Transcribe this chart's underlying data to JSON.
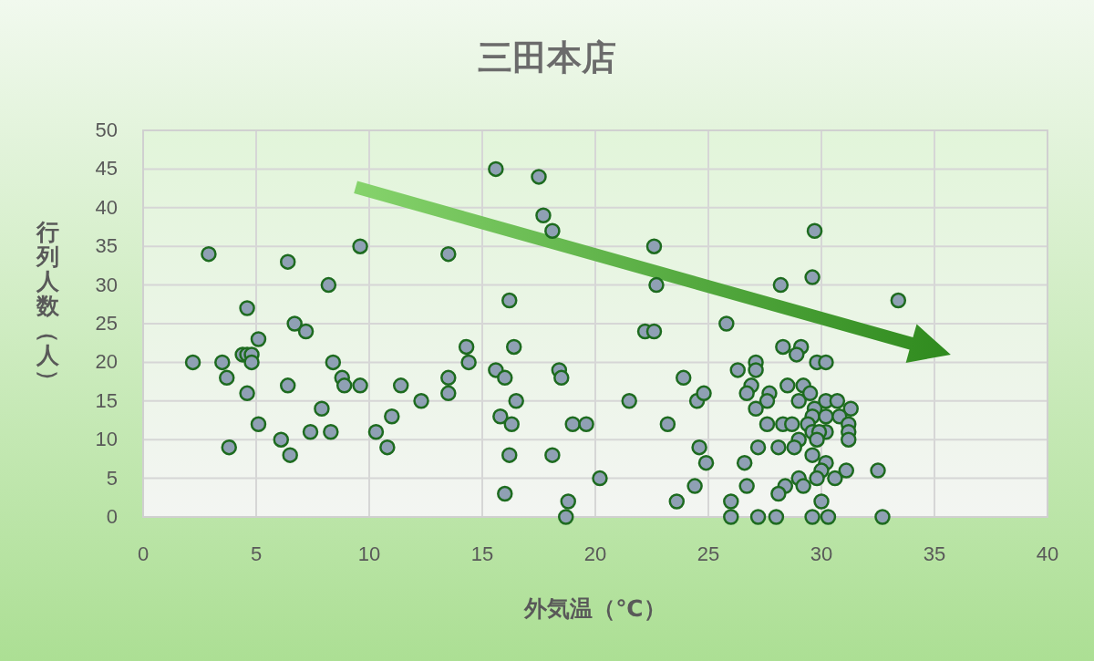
{
  "chart_data": {
    "type": "scatter",
    "title": "三田本店",
    "xlabel": "外気温（℃）",
    "ylabel": "行列人数（人）",
    "xlim": [
      0,
      40
    ],
    "xticks": [
      0,
      5,
      10,
      15,
      20,
      25,
      30,
      35,
      40
    ],
    "ylim": [
      0,
      50
    ],
    "yticks": [
      0,
      5,
      10,
      15,
      20,
      25,
      30,
      35,
      40,
      45,
      50
    ],
    "grid": true,
    "marker": "circle",
    "series": [
      {
        "color": "#8fa0b4",
        "x": [
          2.2,
          2.9,
          3.5,
          3.7,
          3.8,
          4.6,
          4.4,
          4.6,
          4.8,
          4.8,
          4.6,
          5.1,
          5.1,
          6.1,
          6.4,
          6.4,
          6.5,
          6.7,
          7.2,
          7.4,
          7.9,
          8.2,
          8.3,
          8.4,
          8.8,
          8.9,
          9.6,
          9.6,
          10.3,
          10.8,
          11.0,
          11.4,
          12.3,
          13.5,
          13.5,
          13.5,
          14.3,
          14.4,
          15.6,
          17.5,
          17.7,
          18.1,
          22.6,
          22.7,
          16.2,
          22.2,
          22.6,
          16.4,
          15.6,
          16.0,
          18.4,
          18.5,
          23.9,
          16.5,
          21.5,
          24.5,
          24.8,
          15.8,
          16.3,
          19.0,
          19.6,
          23.2,
          16.2,
          18.1,
          24.6,
          24.9,
          20.2,
          24.4,
          16.0,
          18.8,
          18.7,
          23.6,
          28.2,
          29.6,
          29.7,
          33.4,
          25.8,
          28.3,
          29.1,
          28.9,
          27.1,
          27.1,
          26.3,
          29.8,
          30.2,
          26.9,
          26.7,
          27.7,
          27.6,
          28.5,
          29.2,
          29.5,
          27.1,
          29.0,
          29.7,
          30.2,
          30.7,
          31.3,
          29.6,
          30.2,
          30.8,
          27.6,
          28.3,
          28.7,
          29.4,
          31.2,
          30.2,
          29.6,
          29.9,
          31.2,
          31.2,
          29.8,
          29.0,
          27.2,
          28.1,
          28.8,
          29.6,
          26.6,
          30.2,
          31.1,
          30.0,
          32.5,
          30.6,
          29.8,
          29.0,
          26.7,
          28.4,
          29.2,
          28.1,
          26.0,
          30.0,
          26.0,
          27.2,
          28.0,
          29.6,
          30.3,
          32.7
        ],
        "values": [
          20,
          34,
          20,
          18,
          9,
          27,
          21,
          21,
          21,
          20,
          16,
          23,
          12,
          10,
          33,
          17,
          8,
          25,
          24,
          11,
          14,
          30,
          11,
          20,
          18,
          17,
          35,
          17,
          11,
          9,
          13,
          17,
          15,
          34,
          18,
          16,
          22,
          20,
          45,
          44,
          39,
          37,
          35,
          30,
          28,
          24,
          24,
          22,
          19,
          18,
          19,
          18,
          18,
          15,
          15,
          15,
          16,
          13,
          12,
          12,
          12,
          12,
          8,
          8,
          9,
          7,
          5,
          4,
          3,
          2,
          0,
          2,
          30,
          31,
          37,
          28,
          25,
          22,
          22,
          21,
          20,
          19,
          19,
          20,
          20,
          17,
          16,
          16,
          15,
          17,
          17,
          16,
          14,
          15,
          14,
          15,
          15,
          14,
          13,
          13,
          13,
          12,
          12,
          12,
          12,
          12,
          11,
          11,
          11,
          11,
          10,
          10,
          10,
          9,
          9,
          9,
          8,
          7,
          7,
          6,
          6,
          6,
          5,
          5,
          5,
          4,
          4,
          4,
          3,
          2,
          2,
          0,
          0,
          0,
          0,
          0,
          0
        ]
      }
    ]
  }
}
